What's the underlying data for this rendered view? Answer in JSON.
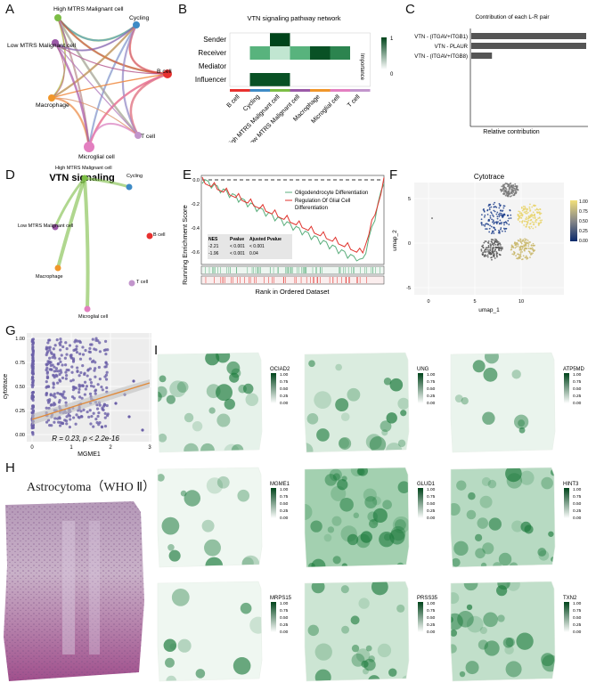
{
  "panel_letters": [
    "A",
    "B",
    "C",
    "D",
    "E",
    "F",
    "G",
    "H",
    "I"
  ],
  "panelA": {
    "nodes": [
      {
        "label": "High MTRS Malignant cell",
        "color": "#7cbd45"
      },
      {
        "label": "Cycling",
        "color": "#3e8bc6"
      },
      {
        "label": "B cell",
        "color": "#e8312f"
      },
      {
        "label": "T cell",
        "color": "#c295cc"
      },
      {
        "label": "Microglial cell",
        "color": "#e37fc0"
      },
      {
        "label": "Macrophage",
        "color": "#f0962a"
      },
      {
        "label": "Low MTRS Malignant cell",
        "color": "#9b59a7"
      }
    ]
  },
  "panelB": {
    "title": "VTN signaling pathway network",
    "rows": [
      "Sender",
      "Receiver",
      "Mediator",
      "Influencer"
    ],
    "cols": [
      "B cell",
      "Cycling",
      "High MTRS Malignant cell",
      "Low MTRS Malignant cell",
      "Macrophage",
      "Microglial cell",
      "T cell"
    ],
    "col_colors": [
      "#e8312f",
      "#3e8bc6",
      "#7cbd45",
      "#9b59a7",
      "#f0962a",
      "#e37fc0",
      "#c295cc"
    ],
    "values": [
      [
        0,
        0,
        1,
        0,
        0,
        0,
        0
      ],
      [
        0,
        0.55,
        0.25,
        0.55,
        0.95,
        0.75,
        0
      ],
      [
        0,
        0,
        0,
        0,
        0,
        0,
        0
      ],
      [
        0,
        0.95,
        0.95,
        0,
        0,
        0,
        0
      ]
    ],
    "legend_title": "Importance",
    "legend_max": "1",
    "legend_min": "0"
  },
  "panelC": {
    "chart_data": {
      "type": "bar",
      "title": "Contribution of each L-R pair",
      "categories": [
        "VTN - (ITGAV+ITGB1)",
        "VTN - PLAUR",
        "VTN - (ITGAV+ITGB8)"
      ],
      "values": [
        1.0,
        1.0,
        0.18
      ],
      "xlabel": "Relative contribution"
    }
  },
  "panelD": {
    "title": "VTN signaling",
    "nodes": [
      {
        "label": "High MTRS Malignant cell",
        "color": "#7cbd45"
      },
      {
        "label": "Cycling",
        "color": "#3e8bc6"
      },
      {
        "label": "Low MTRS Malignant cell",
        "color": "#9b59a7"
      },
      {
        "label": "B cell",
        "color": "#e8312f"
      },
      {
        "label": "Macrophage",
        "color": "#f0962a"
      },
      {
        "label": "T cell",
        "color": "#c295cc"
      },
      {
        "label": "Microglial cell",
        "color": "#e37fc0"
      }
    ]
  },
  "panelE": {
    "ylabel": "Running Enrichment Score",
    "xlabel": "Rank in Ordered Dataset",
    "legend": [
      {
        "label": "Oligodendrocyte Differentiation",
        "color": "#5aae7c"
      },
      {
        "label": "Regulation Of Glial Cell Differentiation",
        "color": "#e0332d"
      }
    ],
    "table_header": [
      "NES",
      "Pvalue",
      "Ajusted Pvalue"
    ],
    "table_rows": [
      [
        "-2.21",
        "< 0.001",
        "< 0.001"
      ],
      [
        "-1.96",
        "< 0.001",
        "0.04"
      ]
    ],
    "yticks": [
      "0.0",
      "-0.2",
      "-0.4",
      "-0.6"
    ]
  },
  "panelF": {
    "title": "Cytotrace",
    "xlabel": "umap_1",
    "ylabel": "umap_2",
    "xticks": [
      "0",
      "5",
      "10"
    ],
    "yticks": [
      "5",
      "0",
      "-5"
    ],
    "legend": [
      "1.00",
      "0.75",
      "0.50",
      "0.25",
      "0.00"
    ]
  },
  "panelG": {
    "xlabel": "MGME1",
    "ylabel": "cytotrace",
    "xticks": [
      "0",
      "1",
      "2",
      "3"
    ],
    "yticks": [
      "1.00",
      "0.75",
      "0.50",
      "0.25",
      "0.00"
    ],
    "stat": "R = 0.23, p < 2.2e-16"
  },
  "panelH": {
    "title": "Astrocytoma（WHO Ⅱ）"
  },
  "panelI": {
    "maps": [
      {
        "gene": "OCIAD2",
        "ticks": [
          "1.00",
          "0.75",
          "0.50",
          "0.25",
          "0.00"
        ]
      },
      {
        "gene": "UNG",
        "ticks": [
          "1.00",
          "0.75",
          "0.50",
          "0.25",
          "0.00"
        ]
      },
      {
        "gene": "ATP5MD",
        "ticks": [
          "1.00",
          "0.75",
          "0.50",
          "0.25",
          "0.00"
        ]
      },
      {
        "gene": "MGME1",
        "ticks": [
          "1.00",
          "0.75",
          "0.50",
          "0.25",
          "0.00"
        ]
      },
      {
        "gene": "GLUD1",
        "ticks": [
          "1.00",
          "0.75",
          "0.50",
          "0.25",
          "0.00"
        ]
      },
      {
        "gene": "HINT3",
        "ticks": [
          "1.00",
          "0.75",
          "0.50",
          "0.25",
          "0.00"
        ]
      },
      {
        "gene": "MRPS15",
        "ticks": [
          "1.00",
          "0.75",
          "0.50",
          "0.25",
          "0.00"
        ]
      },
      {
        "gene": "PRSS35",
        "ticks": [
          "1.00",
          "0.75",
          "0.50",
          "0.25",
          "0.00"
        ]
      },
      {
        "gene": "TXN2",
        "ticks": [
          "1.00",
          "0.75",
          "0.50",
          "0.25",
          "0.00"
        ]
      }
    ]
  }
}
